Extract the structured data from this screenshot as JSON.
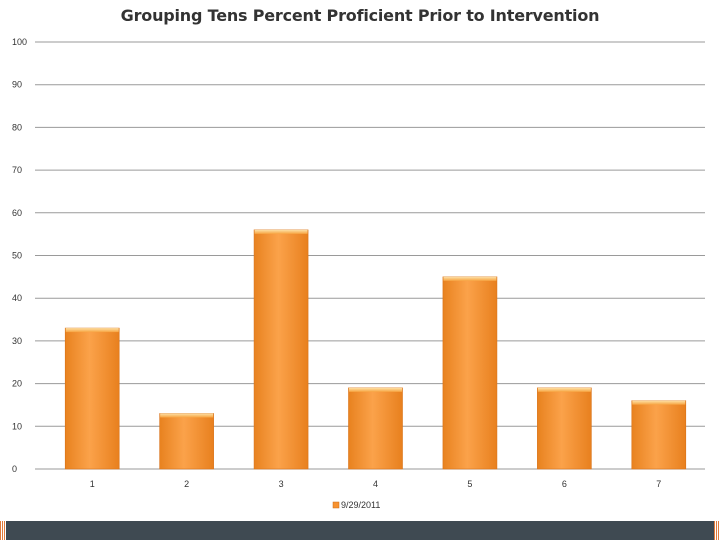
{
  "chart_data": {
    "type": "bar",
    "title": "Grouping Tens Percent Proficient Prior to Intervention",
    "categories": [
      "1",
      "2",
      "3",
      "4",
      "5",
      "6",
      "7"
    ],
    "series": [
      {
        "name": "9/29/2011",
        "values": [
          33,
          13,
          56,
          19,
          45,
          19,
          16
        ]
      }
    ],
    "xlabel": "",
    "ylabel": "",
    "ylim": [
      0,
      100
    ],
    "yticks": [
      "0",
      "10",
      "20",
      "30",
      "40",
      "50",
      "60",
      "70",
      "80",
      "90",
      "100"
    ],
    "grid": true,
    "legend": "bottom",
    "colors": {
      "bar": "#f7922f",
      "bar_light": "#fbb45c",
      "bar_dark": "#e5781c",
      "footer": "#3f4a52"
    }
  }
}
